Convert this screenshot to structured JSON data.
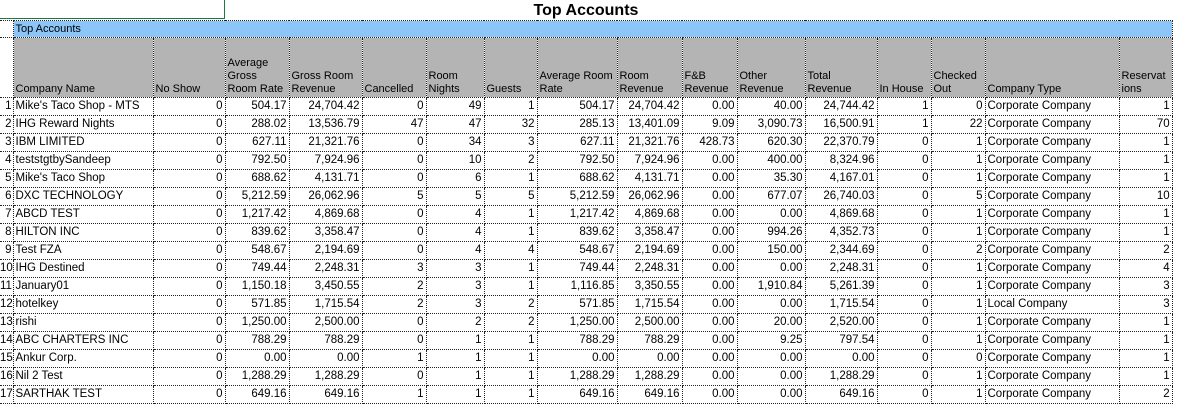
{
  "title": "Top Accounts",
  "section_label": "Top Accounts",
  "columns": [
    "Company Name",
    "No Show",
    "Average Gross Room Rate",
    "Gross Room Revenue",
    "Cancelled",
    "Room Nights",
    "Guests",
    "Average Room Rate",
    "Room Revenue",
    "F&B Revenue",
    "Other Revenue",
    "Total Revenue",
    "In House",
    "Checked Out",
    "Company Type",
    "Reservat ions"
  ],
  "colors": {
    "band": "#8cc5f7",
    "header": "#b4b4b4"
  },
  "rows": [
    [
      "1",
      "Mike's Taco Shop - MTS",
      "0",
      "504.17",
      "24,704.42",
      "0",
      "49",
      "1",
      "504.17",
      "24,704.42",
      "0.00",
      "40.00",
      "24,744.42",
      "1",
      "0",
      "Corporate Company",
      "1"
    ],
    [
      "2",
      "IHG Reward Nights",
      "0",
      "288.02",
      "13,536.79",
      "47",
      "47",
      "32",
      "285.13",
      "13,401.09",
      "9.09",
      "3,090.73",
      "16,500.91",
      "1",
      "22",
      "Corporate Company",
      "70"
    ],
    [
      "3",
      "IBM LIMITED",
      "0",
      "627.11",
      "21,321.76",
      "0",
      "34",
      "3",
      "627.11",
      "21,321.76",
      "428.73",
      "620.30",
      "22,370.79",
      "0",
      "1",
      "Corporate Company",
      "1"
    ],
    [
      "4",
      "teststgtbySandeep",
      "0",
      "792.50",
      "7,924.96",
      "0",
      "10",
      "2",
      "792.50",
      "7,924.96",
      "0.00",
      "400.00",
      "8,324.96",
      "0",
      "1",
      "Corporate Company",
      "1"
    ],
    [
      "5",
      "Mike's Taco Shop",
      "0",
      "688.62",
      "4,131.71",
      "0",
      "6",
      "1",
      "688.62",
      "4,131.71",
      "0.00",
      "35.30",
      "4,167.01",
      "0",
      "1",
      "Corporate Company",
      "1"
    ],
    [
      "6",
      "DXC TECHNOLOGY",
      "0",
      "5,212.59",
      "26,062.96",
      "5",
      "5",
      "5",
      "5,212.59",
      "26,062.96",
      "0.00",
      "677.07",
      "26,740.03",
      "0",
      "5",
      "Corporate Company",
      "10"
    ],
    [
      "7",
      "ABCD TEST",
      "0",
      "1,217.42",
      "4,869.68",
      "0",
      "4",
      "1",
      "1,217.42",
      "4,869.68",
      "0.00",
      "0.00",
      "4,869.68",
      "0",
      "1",
      "Corporate Company",
      "1"
    ],
    [
      "8",
      "HILTON INC",
      "0",
      "839.62",
      "3,358.47",
      "0",
      "4",
      "1",
      "839.62",
      "3,358.47",
      "0.00",
      "994.26",
      "4,352.73",
      "0",
      "1",
      "Corporate Company",
      "1"
    ],
    [
      "9",
      "Test FZA",
      "0",
      "548.67",
      "2,194.69",
      "0",
      "4",
      "4",
      "548.67",
      "2,194.69",
      "0.00",
      "150.00",
      "2,344.69",
      "0",
      "2",
      "Corporate Company",
      "2"
    ],
    [
      "10",
      "IHG Destined",
      "0",
      "749.44",
      "2,248.31",
      "3",
      "3",
      "1",
      "749.44",
      "2,248.31",
      "0.00",
      "0.00",
      "2,248.31",
      "0",
      "1",
      "Corporate Company",
      "4"
    ],
    [
      "11",
      "January01",
      "0",
      "1,150.18",
      "3,450.55",
      "2",
      "3",
      "1",
      "1,116.85",
      "3,350.55",
      "0.00",
      "1,910.84",
      "5,261.39",
      "0",
      "1",
      "Corporate Company",
      "3"
    ],
    [
      "12",
      "hotelkey",
      "0",
      "571.85",
      "1,715.54",
      "2",
      "3",
      "2",
      "571.85",
      "1,715.54",
      "0.00",
      "0.00",
      "1,715.54",
      "0",
      "1",
      "Local Company",
      "3"
    ],
    [
      "13",
      "rishi",
      "0",
      "1,250.00",
      "2,500.00",
      "0",
      "2",
      "2",
      "1,250.00",
      "2,500.00",
      "0.00",
      "20.00",
      "2,520.00",
      "0",
      "1",
      "Corporate Company",
      "1"
    ],
    [
      "14",
      "ABC CHARTERS INC",
      "0",
      "788.29",
      "788.29",
      "0",
      "1",
      "1",
      "788.29",
      "788.29",
      "0.00",
      "9.25",
      "797.54",
      "0",
      "1",
      "Corporate Company",
      "1"
    ],
    [
      "15",
      "Ankur Corp.",
      "0",
      "0.00",
      "0.00",
      "1",
      "1",
      "1",
      "0.00",
      "0.00",
      "0.00",
      "0.00",
      "0.00",
      "0",
      "0",
      "Corporate Company",
      "1"
    ],
    [
      "16",
      "Nil 2 Test",
      "0",
      "1,288.29",
      "1,288.29",
      "0",
      "1",
      "1",
      "1,288.29",
      "1,288.29",
      "0.00",
      "0.00",
      "1,288.29",
      "0",
      "1",
      "Corporate Company",
      "1"
    ],
    [
      "17",
      "SARTHAK TEST",
      "0",
      "649.16",
      "649.16",
      "1",
      "1",
      "1",
      "649.16",
      "649.16",
      "0.00",
      "0.00",
      "649.16",
      "0",
      "1",
      "Corporate Company",
      "2"
    ]
  ]
}
